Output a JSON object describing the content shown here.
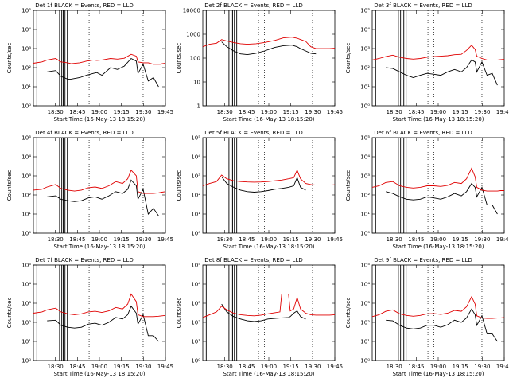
{
  "colors": {
    "events": "#000000",
    "lld": "#e00000",
    "axis": "#000000",
    "background": "#ffffff"
  },
  "x_ticks": [
    "18:30",
    "18:45",
    "19:00",
    "19:15",
    "19:30",
    "19:45"
  ],
  "chart_data": [
    {
      "type": "line",
      "title": "Det 1f BLACK = Events, RED = LLD",
      "xlabel": "Start Time (16-May-13 18:15:20)",
      "ylabel": "Counts/sec",
      "ylog": true,
      "ylim_exp": [
        0,
        5
      ],
      "y_ticks": [
        "10⁰",
        "10¹",
        "10²",
        "10³",
        "10⁴",
        "10⁵"
      ],
      "x": [
        0,
        5,
        8,
        13,
        16,
        20,
        22,
        27,
        31,
        35,
        37,
        40,
        45,
        49,
        53,
        57,
        60,
        61,
        64,
        67,
        70,
        73,
        74,
        75,
        77
      ],
      "series": [
        {
          "name": "Events",
          "values": [
            null,
            null,
            60,
            70,
            35,
            25,
            25,
            30,
            40,
            50,
            55,
            40,
            100,
            80,
            120,
            300,
            220,
            50,
            150,
            20,
            30,
            10,
            null,
            null,
            null
          ]
        },
        {
          "name": "LLD",
          "values": [
            170,
            200,
            250,
            300,
            200,
            180,
            160,
            180,
            220,
            250,
            240,
            250,
            300,
            280,
            310,
            500,
            400,
            200,
            180,
            180,
            150,
            150,
            150,
            160,
            170
          ]
        }
      ],
      "gaps": [
        null,
        null,
        null
      ]
    },
    {
      "type": "line",
      "title": "Det 2f BLACK = Events, RED = LLD",
      "xlabel": "Start Time (16-May-13 18:15:20)",
      "ylabel": "Counts/sec",
      "ylog": true,
      "ylim_exp": [
        0,
        4
      ],
      "y_ticks": [
        "1",
        "10",
        "100",
        "1000",
        "10000"
      ],
      "x": [
        0,
        4,
        8,
        11,
        14,
        18,
        22,
        26,
        31,
        36,
        42,
        47,
        52,
        55,
        57,
        60,
        63,
        66,
        70,
        74,
        77
      ],
      "series": [
        {
          "name": "Events",
          "values": [
            null,
            null,
            null,
            480,
            300,
            200,
            150,
            140,
            160,
            200,
            280,
            330,
            350,
            300,
            250,
            200,
            160,
            150,
            null,
            null,
            null
          ]
        },
        {
          "name": "LLD",
          "values": [
            300,
            380,
            420,
            600,
            520,
            450,
            400,
            380,
            400,
            450,
            550,
            700,
            750,
            680,
            600,
            500,
            300,
            250,
            250,
            250,
            260
          ]
        }
      ],
      "gaps": [
        null,
        null,
        null
      ]
    },
    {
      "type": "line",
      "title": "Det 3f BLACK = Events, RED = LLD",
      "xlabel": "Start Time (16-May-13 18:15:20)",
      "ylabel": "Counts/sec",
      "ylog": true,
      "ylim_exp": [
        0,
        5
      ],
      "y_ticks": [
        "10⁰",
        "10¹",
        "10²",
        "10³",
        "10⁴",
        "10⁵"
      ],
      "x": [
        0,
        4,
        8,
        12,
        16,
        20,
        24,
        28,
        32,
        36,
        40,
        44,
        48,
        52,
        55,
        58,
        60,
        61,
        64,
        67,
        70,
        73,
        75,
        77
      ],
      "series": [
        {
          "name": "Events",
          "values": [
            null,
            null,
            100,
            90,
            60,
            40,
            30,
            40,
            50,
            45,
            40,
            60,
            80,
            60,
            100,
            250,
            200,
            60,
            200,
            40,
            50,
            12,
            null,
            null
          ]
        },
        {
          "name": "LLD",
          "values": [
            250,
            300,
            380,
            450,
            350,
            300,
            280,
            300,
            350,
            380,
            400,
            420,
            480,
            500,
            800,
            1500,
            900,
            400,
            300,
            250,
            250,
            250,
            260,
            270
          ]
        }
      ],
      "gaps": [
        null,
        null,
        null
      ]
    },
    {
      "type": "line",
      "title": "Det 4f BLACK = Events, RED = LLD",
      "xlabel": "Start Time (16-May-13 18:15:20)",
      "ylabel": "Counts/sec",
      "ylog": true,
      "ylim_exp": [
        0,
        5
      ],
      "y_ticks": [
        "10⁰",
        "10¹",
        "10²",
        "10³",
        "10⁴",
        "10⁵"
      ],
      "x": [
        0,
        5,
        8,
        13,
        16,
        20,
        24,
        28,
        32,
        36,
        40,
        44,
        48,
        52,
        55,
        57,
        60,
        61,
        64,
        67,
        70,
        73,
        75,
        77
      ],
      "series": [
        {
          "name": "Events",
          "values": [
            null,
            null,
            80,
            90,
            60,
            50,
            45,
            50,
            70,
            80,
            60,
            90,
            150,
            120,
            200,
            600,
            300,
            60,
            200,
            10,
            20,
            8,
            null,
            null
          ]
        },
        {
          "name": "LLD",
          "values": [
            180,
            200,
            260,
            350,
            220,
            180,
            160,
            180,
            240,
            260,
            220,
            300,
            500,
            400,
            700,
            2000,
            1000,
            150,
            120,
            120,
            120,
            130,
            140,
            150
          ]
        }
      ],
      "gaps": [
        null,
        null,
        null
      ]
    },
    {
      "type": "line",
      "title": "Det 5f BLACK = Events, RED = LLD",
      "xlabel": "Start Time (16-May-13 18:15:20)",
      "ylabel": "Counts/sec",
      "ylog": true,
      "ylim_exp": [
        0,
        5
      ],
      "y_ticks": [
        "10⁰",
        "10¹",
        "10²",
        "10³",
        "10⁴",
        "10⁵"
      ],
      "x": [
        0,
        4,
        8,
        11,
        14,
        18,
        22,
        26,
        30,
        34,
        38,
        42,
        46,
        50,
        53,
        55,
        57,
        60,
        63,
        66,
        70,
        74,
        77
      ],
      "series": [
        {
          "name": "Events",
          "values": [
            null,
            null,
            null,
            900,
            400,
            250,
            180,
            150,
            140,
            150,
            170,
            200,
            220,
            250,
            300,
            800,
            250,
            180,
            null,
            null,
            null,
            null,
            null
          ]
        },
        {
          "name": "LLD",
          "values": [
            300,
            400,
            500,
            1100,
            700,
            550,
            500,
            480,
            470,
            480,
            500,
            550,
            600,
            700,
            800,
            2000,
            700,
            400,
            350,
            330,
            330,
            330,
            340
          ]
        }
      ],
      "gaps": [
        null,
        null,
        null
      ]
    },
    {
      "type": "line",
      "title": "Det 6f BLACK = Events, RED = LLD",
      "xlabel": "Start Time (16-May-13 18:15:20)",
      "ylabel": "Counts/sec",
      "ylog": true,
      "ylim_exp": [
        0,
        5
      ],
      "y_ticks": [
        "10⁰",
        "10¹",
        "10²",
        "10³",
        "10⁴",
        "10⁵"
      ],
      "x": [
        0,
        4,
        8,
        12,
        16,
        20,
        24,
        28,
        32,
        36,
        40,
        44,
        48,
        52,
        55,
        58,
        60,
        61,
        64,
        67,
        70,
        73,
        75,
        77
      ],
      "series": [
        {
          "name": "Events",
          "values": [
            null,
            null,
            150,
            120,
            80,
            60,
            55,
            60,
            80,
            70,
            60,
            80,
            120,
            90,
            150,
            400,
            250,
            80,
            250,
            30,
            30,
            10,
            null,
            null
          ]
        },
        {
          "name": "LLD",
          "values": [
            250,
            300,
            450,
            500,
            300,
            250,
            230,
            250,
            300,
            300,
            280,
            320,
            450,
            400,
            700,
            2500,
            900,
            250,
            180,
            160,
            160,
            160,
            170,
            170
          ]
        }
      ],
      "gaps": [
        null,
        null,
        null
      ]
    },
    {
      "type": "line",
      "title": "Det 7f BLACK = Events, RED = LLD",
      "xlabel": "Start Time (16-May-13 18:15:20)",
      "ylabel": "Counts/sec",
      "ylog": true,
      "ylim_exp": [
        0,
        5
      ],
      "y_ticks": [
        "10⁰",
        "10¹",
        "10²",
        "10³",
        "10⁴",
        "10⁵"
      ],
      "x": [
        0,
        5,
        8,
        13,
        16,
        20,
        24,
        28,
        32,
        36,
        40,
        44,
        48,
        52,
        55,
        57,
        60,
        61,
        64,
        67,
        70,
        73,
        75,
        77
      ],
      "series": [
        {
          "name": "Events",
          "values": [
            null,
            null,
            120,
            130,
            70,
            55,
            50,
            55,
            80,
            90,
            70,
            100,
            180,
            150,
            250,
            700,
            300,
            80,
            250,
            20,
            20,
            10,
            null,
            null
          ]
        },
        {
          "name": "LLD",
          "values": [
            300,
            350,
            450,
            550,
            350,
            280,
            250,
            280,
            350,
            380,
            330,
            400,
            600,
            500,
            900,
            3000,
            1200,
            250,
            200,
            200,
            200,
            210,
            220,
            230
          ]
        }
      ],
      "gaps": [
        null,
        null,
        null
      ]
    },
    {
      "type": "line",
      "title": "Det 8f BLACK = Events, RED = LLD",
      "xlabel": "Start Time (16-May-13 18:15:20)",
      "ylabel": "Counts/sec",
      "ylog": true,
      "ylim_exp": [
        0,
        5
      ],
      "y_ticks": [
        "10⁰",
        "10¹",
        "10²",
        "10³",
        "10⁴",
        "10⁵"
      ],
      "x": [
        0,
        4,
        8,
        11,
        14,
        18,
        22,
        26,
        30,
        34,
        38,
        42,
        45,
        46,
        50,
        51,
        53,
        55,
        57,
        60,
        63,
        66,
        70,
        74,
        77
      ],
      "series": [
        {
          "name": "Events",
          "values": [
            null,
            null,
            null,
            900,
            350,
            200,
            150,
            120,
            110,
            120,
            150,
            160,
            170,
            170,
            180,
            200,
            300,
            400,
            200,
            150,
            null,
            null,
            null,
            null,
            null
          ]
        },
        {
          "name": "LLD",
          "values": [
            180,
            250,
            350,
            700,
            450,
            300,
            250,
            230,
            220,
            240,
            280,
            320,
            350,
            3000,
            3000,
            400,
            500,
            2000,
            500,
            300,
            250,
            240,
            240,
            240,
            250
          ]
        }
      ],
      "gaps": [
        null,
        null,
        null
      ]
    },
    {
      "type": "line",
      "title": "Det 9f BLACK = Events, RED = LLD",
      "xlabel": "Start Time (16-May-13 18:15:20)",
      "ylabel": "Counts/sec",
      "ylog": true,
      "ylim_exp": [
        0,
        5
      ],
      "y_ticks": [
        "10⁰",
        "10¹",
        "10²",
        "10³",
        "10⁴",
        "10⁵"
      ],
      "x": [
        0,
        4,
        8,
        12,
        16,
        20,
        24,
        28,
        32,
        36,
        40,
        44,
        48,
        52,
        55,
        58,
        60,
        61,
        64,
        67,
        70,
        73,
        75,
        77
      ],
      "series": [
        {
          "name": "Events",
          "values": [
            null,
            null,
            130,
            120,
            70,
            50,
            45,
            50,
            70,
            70,
            55,
            75,
            130,
            100,
            170,
            500,
            250,
            70,
            220,
            25,
            25,
            10,
            null,
            null
          ]
        },
        {
          "name": "LLD",
          "values": [
            200,
            250,
            380,
            450,
            280,
            230,
            210,
            230,
            280,
            290,
            260,
            300,
            420,
            380,
            650,
            2200,
            900,
            220,
            170,
            160,
            160,
            170,
            170,
            180
          ]
        }
      ],
      "gaps": [
        null,
        null,
        null
      ]
    }
  ]
}
